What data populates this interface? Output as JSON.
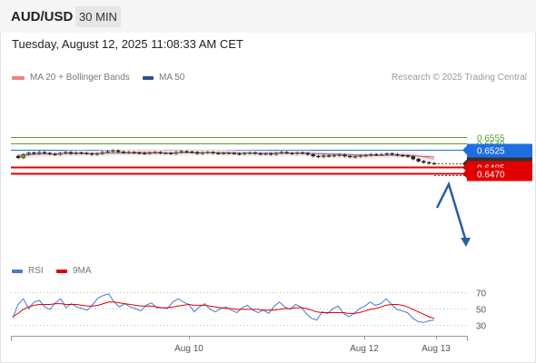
{
  "header": {
    "symbol": "AUD/USD",
    "timeframe": "30 MIN"
  },
  "datetime": "Tuesday, August 12, 2025 11:08:33 AM CET",
  "legend": {
    "ma20": {
      "label": "MA 20 + Bollinger Bands",
      "color": "#f08080"
    },
    "ma50": {
      "label": "MA 50",
      "color": "#2b4f8c"
    },
    "rsi": {
      "label": "RSI",
      "color": "#4a78d0"
    },
    "ma9": {
      "label": "9MA",
      "color": "#e00000"
    }
  },
  "credit": "Research © 2025 Trading Central",
  "levels": [
    {
      "value": "0.6555",
      "kind": "resistance-minor",
      "color": "#5a9e2a"
    },
    {
      "value": "0.6540",
      "kind": "resistance-minor",
      "color": "#5a9e2a"
    },
    {
      "value": "0.6525",
      "kind": "pivot",
      "color": "#1e6fe0"
    },
    {
      "value": "0.6492",
      "kind": "last-price",
      "color": "#333333"
    },
    {
      "value": "0.6485",
      "kind": "support",
      "color": "#e00000"
    },
    {
      "value": "0.6470",
      "kind": "support",
      "color": "#e00000"
    }
  ],
  "rsi_ticks": [
    "70",
    "50",
    "30"
  ],
  "x_ticks": [
    "Aug 10",
    "Aug 12",
    "Aug 13"
  ],
  "chart_data": [
    {
      "type": "candlestick",
      "title": "AUD/USD",
      "subtitle": "30 MIN",
      "series_legend": [
        "MA 20 + Bollinger Bands",
        "MA 50"
      ],
      "price_levels": [
        0.6555,
        0.654,
        0.6525,
        0.6492,
        0.6485,
        0.647
      ],
      "last_price": 0.6492,
      "x_ticks": [
        "Aug 10",
        "Aug 12",
        "Aug 13"
      ],
      "close": [
        0.6506,
        0.6514,
        0.6518,
        0.6516,
        0.6519,
        0.6517,
        0.6515,
        0.6514,
        0.6517,
        0.6519,
        0.6516,
        0.6518,
        0.6517,
        0.6516,
        0.6514,
        0.6516,
        0.6519,
        0.6521,
        0.6523,
        0.652,
        0.6518,
        0.6519,
        0.6518,
        0.6517,
        0.6516,
        0.6518,
        0.6519,
        0.6517,
        0.6517,
        0.6516,
        0.6519,
        0.6521,
        0.652,
        0.6519,
        0.6516,
        0.6518,
        0.6519,
        0.6517,
        0.6516,
        0.6517,
        0.6517,
        0.6516,
        0.6515,
        0.6517,
        0.6518,
        0.6516,
        0.6515,
        0.6516,
        0.6514,
        0.6517,
        0.6519,
        0.6517,
        0.6516,
        0.6518,
        0.6517,
        0.6514,
        0.651,
        0.6508,
        0.6511,
        0.651,
        0.6512,
        0.6513,
        0.651,
        0.6508,
        0.6509,
        0.6511,
        0.6512,
        0.6514,
        0.6513,
        0.6514,
        0.6516,
        0.6514,
        0.6512,
        0.6511,
        0.6509,
        0.6503,
        0.6498,
        0.6495,
        0.6493,
        0.6492
      ],
      "ma50": [
        0.6512,
        0.6513,
        0.6514,
        0.6514,
        0.6515,
        0.6515,
        0.6515,
        0.6515,
        0.6516,
        0.6516,
        0.6516,
        0.6516,
        0.6516,
        0.6516,
        0.6516,
        0.6516,
        0.6516,
        0.6517,
        0.6517,
        0.6517,
        0.6517,
        0.6517,
        0.6517,
        0.6517,
        0.6517,
        0.6517,
        0.6517,
        0.6517,
        0.6517,
        0.6517,
        0.6517,
        0.6518,
        0.6518,
        0.6518,
        0.6518,
        0.6518,
        0.6518,
        0.6518,
        0.6518,
        0.6518,
        0.6518,
        0.6518,
        0.6517,
        0.6517,
        0.6517,
        0.6517,
        0.6517,
        0.6517,
        0.6517,
        0.6517,
        0.6517,
        0.6517,
        0.6517,
        0.6517,
        0.6517,
        0.6517,
        0.6516,
        0.6516,
        0.6516,
        0.6515,
        0.6515,
        0.6515,
        0.6514,
        0.6514,
        0.6513,
        0.6513,
        0.6513,
        0.6513,
        0.6512,
        0.6512,
        0.6512,
        0.6512,
        0.6512,
        0.6511,
        0.6511,
        0.651,
        0.651,
        0.6509,
        0.6509,
        0.6508
      ]
    },
    {
      "type": "line",
      "title": "RSI",
      "series_legend": [
        "RSI",
        "9MA"
      ],
      "yticks": [
        30,
        50,
        70
      ],
      "ylim": [
        25,
        75
      ],
      "rsi": [
        38,
        55,
        62,
        50,
        58,
        60,
        52,
        49,
        57,
        62,
        51,
        56,
        52,
        50,
        48,
        55,
        63,
        66,
        68,
        58,
        52,
        56,
        52,
        50,
        47,
        54,
        57,
        51,
        51,
        50,
        58,
        62,
        58,
        55,
        46,
        52,
        56,
        49,
        46,
        50,
        52,
        48,
        45,
        51,
        54,
        48,
        45,
        48,
        44,
        53,
        58,
        52,
        49,
        55,
        52,
        44,
        38,
        36,
        46,
        44,
        50,
        53,
        44,
        40,
        44,
        50,
        53,
        58,
        54,
        56,
        62,
        55,
        49,
        47,
        45,
        38,
        34,
        33,
        35,
        36
      ],
      "ma9": [
        40,
        44,
        49,
        52,
        54,
        55,
        55,
        55,
        56,
        56,
        55,
        55,
        55,
        54,
        53,
        53,
        54,
        56,
        58,
        58,
        57,
        56,
        55,
        54,
        53,
        53,
        53,
        52,
        51,
        51,
        52,
        53,
        54,
        55,
        54,
        54,
        54,
        53,
        52,
        51,
        50,
        50,
        49,
        49,
        49,
        49,
        49,
        48,
        48,
        48,
        49,
        50,
        50,
        51,
        51,
        50,
        48,
        46,
        45,
        45,
        45,
        45,
        45,
        44,
        44,
        45,
        47,
        49,
        50,
        52,
        54,
        55,
        55,
        54,
        52,
        49,
        46,
        43,
        40,
        38
      ]
    }
  ]
}
